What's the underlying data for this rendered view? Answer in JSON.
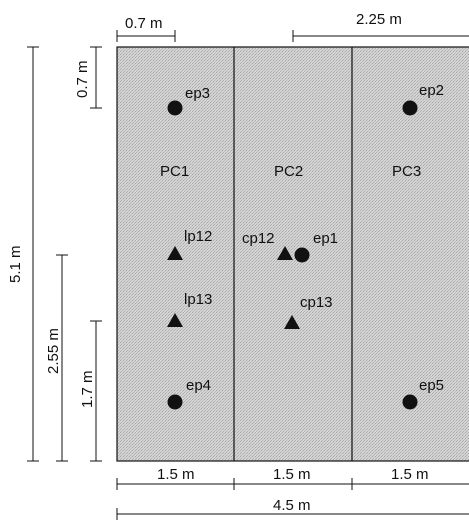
{
  "dimensions": {
    "top_left": "0.7 m",
    "top_right": "2.25 m",
    "left_small": "0.7 m",
    "left_total": "5.1 m",
    "left_mid": "2.55 m",
    "left_low": "1.7 m",
    "bottom_col1": "1.5 m",
    "bottom_col2": "1.5 m",
    "bottom_col3": "1.5 m",
    "bottom_total": "4.5 m"
  },
  "zones": [
    {
      "label": "PC1"
    },
    {
      "label": "PC2"
    },
    {
      "label": "PC3"
    }
  ],
  "points": {
    "ep1": "ep1",
    "ep2": "ep2",
    "ep3": "ep3",
    "ep4": "ep4",
    "ep5": "ep5",
    "lp12": "lp12",
    "lp13": "lp13",
    "cp12": "cp12",
    "cp13": "cp13"
  },
  "colors": {
    "room_fill": "#d0d0d0",
    "ink": "#111111"
  },
  "icons": {
    "emitter": "filled-circle",
    "receiver": "filled-triangle"
  }
}
